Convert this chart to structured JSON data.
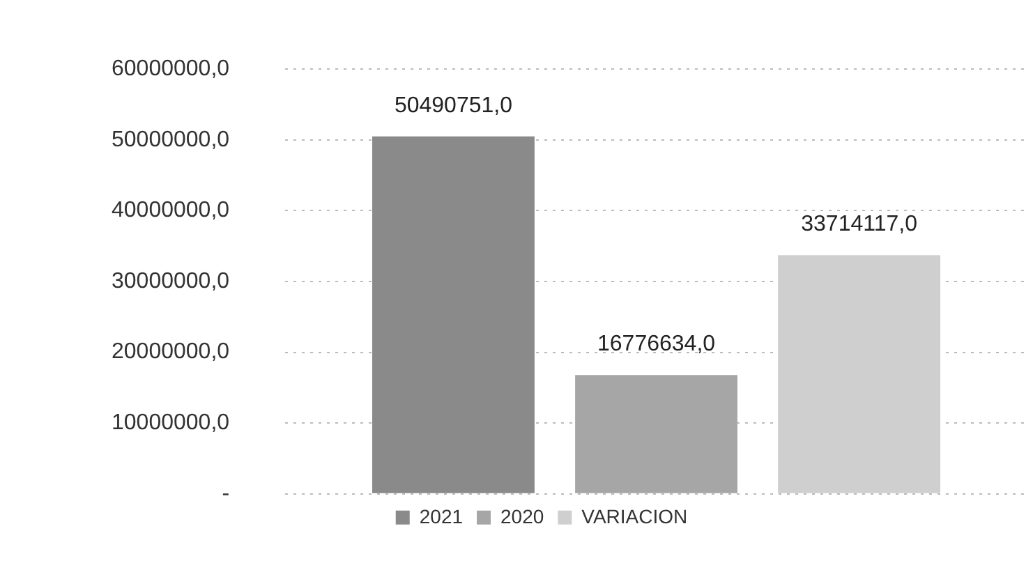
{
  "chart_data": {
    "type": "bar",
    "categories": [
      null
    ],
    "series": [
      {
        "name": "2021",
        "color": "#8a8a8a",
        "values": [
          50490751
        ],
        "value_labels": [
          "50490751,0"
        ]
      },
      {
        "name": "2020",
        "color": "#a6a6a6",
        "values": [
          16776634
        ],
        "value_labels": [
          "16776634,0"
        ]
      },
      {
        "name": "VARIACION",
        "color": "#cfcfcf",
        "values": [
          33714117
        ],
        "value_labels": [
          "33714117,0"
        ]
      }
    ],
    "ylim": [
      0,
      60000000
    ],
    "yticks": [
      {
        "value": 0,
        "label": "-"
      },
      {
        "value": 10000000,
        "label": "10000000,0"
      },
      {
        "value": 20000000,
        "label": "20000000,0"
      },
      {
        "value": 30000000,
        "label": "30000000,0"
      },
      {
        "value": 40000000,
        "label": "40000000,0"
      },
      {
        "value": 50000000,
        "label": "50000000,0"
      },
      {
        "value": 60000000,
        "label": "60000000,0"
      }
    ],
    "grid": "y",
    "legend": "bottom"
  }
}
